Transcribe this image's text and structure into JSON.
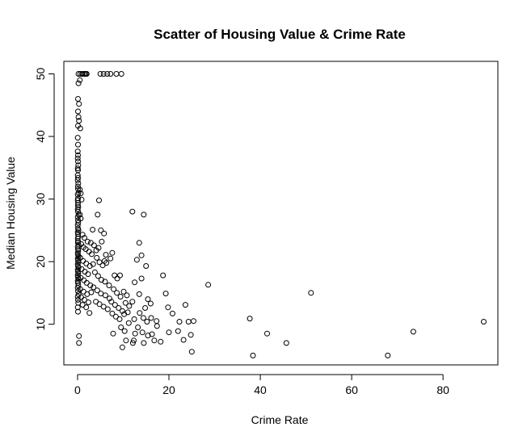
{
  "chart_data": {
    "type": "scatter",
    "title": "Scatter of Housing Value & Crime Rate",
    "xlabel": "Crime Rate",
    "ylabel": "Median Housing Value",
    "xlim": [
      -3,
      92
    ],
    "ylim": [
      3.5,
      52
    ],
    "x_ticks": [
      0,
      20,
      40,
      60,
      80
    ],
    "y_ticks": [
      10,
      20,
      30,
      40,
      50
    ],
    "grid": false,
    "legend": "none",
    "marker": "open-circle",
    "point_color": "#000000",
    "points": [
      [
        0.2,
        50
      ],
      [
        0.6,
        50
      ],
      [
        1.0,
        50
      ],
      [
        1.3,
        50
      ],
      [
        1.6,
        50
      ],
      [
        1.8,
        50
      ],
      [
        2.0,
        50
      ],
      [
        5.0,
        50
      ],
      [
        5.7,
        50
      ],
      [
        6.5,
        50
      ],
      [
        7.2,
        50
      ],
      [
        8.5,
        50
      ],
      [
        9.6,
        50
      ],
      [
        0.2,
        48.5
      ],
      [
        0.5,
        49.0
      ],
      [
        0.1,
        46.0
      ],
      [
        0.3,
        45.2
      ],
      [
        0.1,
        44.0
      ],
      [
        0.2,
        43.1
      ],
      [
        0.3,
        42.5
      ],
      [
        0.1,
        41.7
      ],
      [
        0.6,
        41.3
      ],
      [
        0.05,
        39.8
      ],
      [
        0.1,
        38.7
      ],
      [
        0.05,
        37.6
      ],
      [
        0.1,
        37.0
      ],
      [
        0.05,
        36.5
      ],
      [
        0.1,
        36.0
      ],
      [
        0.15,
        35.4
      ],
      [
        0.05,
        34.9
      ],
      [
        0.1,
        34.6
      ],
      [
        0.05,
        33.8
      ],
      [
        0.1,
        33.4
      ],
      [
        0.05,
        33.0
      ],
      [
        0.15,
        32.5
      ],
      [
        0.08,
        32.0
      ],
      [
        0.1,
        31.6
      ],
      [
        0.2,
        31.0
      ],
      [
        0.05,
        30.7
      ],
      [
        0.1,
        30.1
      ],
      [
        0.05,
        29.8
      ],
      [
        0.1,
        29.4
      ],
      [
        0.08,
        29.0
      ],
      [
        0.15,
        28.7
      ],
      [
        0.05,
        28.4
      ],
      [
        0.1,
        28.0
      ],
      [
        0.2,
        27.5
      ],
      [
        0.05,
        27.1
      ],
      [
        0.1,
        26.6
      ],
      [
        0.15,
        26.2
      ],
      [
        0.05,
        25.8
      ],
      [
        0.1,
        25.3
      ],
      [
        0.2,
        25.0
      ],
      [
        0.05,
        24.7
      ],
      [
        0.1,
        24.4
      ],
      [
        0.15,
        24.0
      ],
      [
        0.05,
        23.7
      ],
      [
        0.1,
        23.3
      ],
      [
        0.08,
        23.0
      ],
      [
        0.2,
        22.7
      ],
      [
        0.05,
        22.4
      ],
      [
        0.1,
        22.0
      ],
      [
        0.15,
        21.7
      ],
      [
        0.05,
        21.4
      ],
      [
        0.1,
        21.1
      ],
      [
        0.2,
        20.8
      ],
      [
        0.05,
        20.5
      ],
      [
        0.1,
        20.2
      ],
      [
        0.15,
        19.9
      ],
      [
        0.05,
        19.6
      ],
      [
        0.1,
        19.3
      ],
      [
        0.2,
        19.0
      ],
      [
        0.05,
        18.7
      ],
      [
        0.1,
        18.4
      ],
      [
        0.15,
        18.1
      ],
      [
        0.05,
        17.8
      ],
      [
        0.1,
        17.5
      ],
      [
        0.2,
        17.2
      ],
      [
        0.05,
        16.9
      ],
      [
        0.1,
        16.6
      ],
      [
        0.15,
        16.2
      ],
      [
        0.05,
        15.8
      ],
      [
        0.1,
        15.3
      ],
      [
        0.2,
        14.8
      ],
      [
        0.05,
        14.4
      ],
      [
        0.1,
        13.9
      ],
      [
        0.15,
        13.4
      ],
      [
        0.05,
        12.7
      ],
      [
        0.1,
        12.0
      ],
      [
        0.3,
        8.1
      ],
      [
        0.3,
        7.0
      ],
      [
        0.5,
        31.5
      ],
      [
        0.7,
        30.9
      ],
      [
        0.9,
        29.9
      ],
      [
        0.5,
        27.5
      ],
      [
        0.7,
        26.9
      ],
      [
        1.1,
        24.3
      ],
      [
        1.5,
        23.8
      ],
      [
        2.2,
        23.2
      ],
      [
        0.8,
        22.8
      ],
      [
        1.3,
        22.3
      ],
      [
        1.8,
        22.0
      ],
      [
        2.5,
        21.6
      ],
      [
        3.1,
        21.2
      ],
      [
        0.6,
        20.6
      ],
      [
        1.2,
        20.1
      ],
      [
        1.9,
        19.7
      ],
      [
        2.7,
        19.3
      ],
      [
        3.4,
        19.6
      ],
      [
        0.9,
        18.8
      ],
      [
        1.6,
        18.4
      ],
      [
        2.3,
        18.0
      ],
      [
        0.7,
        17.4
      ],
      [
        1.4,
        17.0
      ],
      [
        2.0,
        16.6
      ],
      [
        2.8,
        16.2
      ],
      [
        0.6,
        15.6
      ],
      [
        1.3,
        15.2
      ],
      [
        2.1,
        14.8
      ],
      [
        3.0,
        15.1
      ],
      [
        0.8,
        14.3
      ],
      [
        1.5,
        13.9
      ],
      [
        2.4,
        13.5
      ],
      [
        1.1,
        13.1
      ],
      [
        1.9,
        12.7
      ],
      [
        2.6,
        11.8
      ],
      [
        2.9,
        23.0
      ],
      [
        3.6,
        22.6
      ],
      [
        4.1,
        21.8
      ],
      [
        4.6,
        22.2
      ],
      [
        5.3,
        23.2
      ],
      [
        5.8,
        24.5
      ],
      [
        4.2,
        20.6
      ],
      [
        4.8,
        19.9
      ],
      [
        5.5,
        19.4
      ],
      [
        6.3,
        19.8
      ],
      [
        3.8,
        18.3
      ],
      [
        4.5,
        17.7
      ],
      [
        5.2,
        17.1
      ],
      [
        6.0,
        16.8
      ],
      [
        6.9,
        16.2
      ],
      [
        3.5,
        15.9
      ],
      [
        4.3,
        15.4
      ],
      [
        5.1,
        14.9
      ],
      [
        6.1,
        14.6
      ],
      [
        7.0,
        14.1
      ],
      [
        4.0,
        13.6
      ],
      [
        4.8,
        13.2
      ],
      [
        5.7,
        12.8
      ],
      [
        6.6,
        12.4
      ],
      [
        3.3,
        25.1
      ],
      [
        4.4,
        27.5
      ],
      [
        4.7,
        29.8
      ],
      [
        5.1,
        25.0
      ],
      [
        6.2,
        21.1
      ],
      [
        7.2,
        20.5
      ],
      [
        5.9,
        20.1
      ],
      [
        7.6,
        21.4
      ],
      [
        8.1,
        17.8
      ],
      [
        8.7,
        17.3
      ],
      [
        9.3,
        17.8
      ],
      [
        7.9,
        15.6
      ],
      [
        8.6,
        15.0
      ],
      [
        9.4,
        14.4
      ],
      [
        10.1,
        15.2
      ],
      [
        10.8,
        14.6
      ],
      [
        7.4,
        13.6
      ],
      [
        8.2,
        13.1
      ],
      [
        9.0,
        12.6
      ],
      [
        9.8,
        12.1
      ],
      [
        10.5,
        13.4
      ],
      [
        11.3,
        12.9
      ],
      [
        12.0,
        13.6
      ],
      [
        7.6,
        11.7
      ],
      [
        8.4,
        11.2
      ],
      [
        9.2,
        10.8
      ],
      [
        10.2,
        11.6
      ],
      [
        11.0,
        11.9
      ],
      [
        7.8,
        8.5
      ],
      [
        9.5,
        9.5
      ],
      [
        10.3,
        8.9
      ],
      [
        11.2,
        10.2
      ],
      [
        12.4,
        10.8
      ],
      [
        9.8,
        6.3
      ],
      [
        10.6,
        7.4
      ],
      [
        12.1,
        7.0
      ],
      [
        12.6,
        8.5
      ],
      [
        12.0,
        28.0
      ],
      [
        14.5,
        27.5
      ],
      [
        13.0,
        20.3
      ],
      [
        13.5,
        23.0
      ],
      [
        14.0,
        21.0
      ],
      [
        15.0,
        19.3
      ],
      [
        14.0,
        17.3
      ],
      [
        12.5,
        16.7
      ],
      [
        13.5,
        14.8
      ],
      [
        15.4,
        14.0
      ],
      [
        14.8,
        12.6
      ],
      [
        16.0,
        13.3
      ],
      [
        13.6,
        11.8
      ],
      [
        14.4,
        11.0
      ],
      [
        15.2,
        10.4
      ],
      [
        16.1,
        11.0
      ],
      [
        17.3,
        10.5
      ],
      [
        13.2,
        9.5
      ],
      [
        14.2,
        8.7
      ],
      [
        15.4,
        8.2
      ],
      [
        16.3,
        8.4
      ],
      [
        17.4,
        9.7
      ],
      [
        12.3,
        7.4
      ],
      [
        14.5,
        7.0
      ],
      [
        16.8,
        7.4
      ],
      [
        18.2,
        7.2
      ],
      [
        18.7,
        17.8
      ],
      [
        19.3,
        14.9
      ],
      [
        19.8,
        12.7
      ],
      [
        20.8,
        11.7
      ],
      [
        22.3,
        10.4
      ],
      [
        20.0,
        8.7
      ],
      [
        22.0,
        8.9
      ],
      [
        23.6,
        13.1
      ],
      [
        24.3,
        10.4
      ],
      [
        25.4,
        10.5
      ],
      [
        24.8,
        8.3
      ],
      [
        23.2,
        7.5
      ],
      [
        25.0,
        5.6
      ],
      [
        28.6,
        16.3
      ],
      [
        37.7,
        10.9
      ],
      [
        38.4,
        5.0
      ],
      [
        41.5,
        8.5
      ],
      [
        45.7,
        7.0
      ],
      [
        51.1,
        15.0
      ],
      [
        67.9,
        5.0
      ],
      [
        73.5,
        8.8
      ],
      [
        88.9,
        10.4
      ]
    ]
  }
}
